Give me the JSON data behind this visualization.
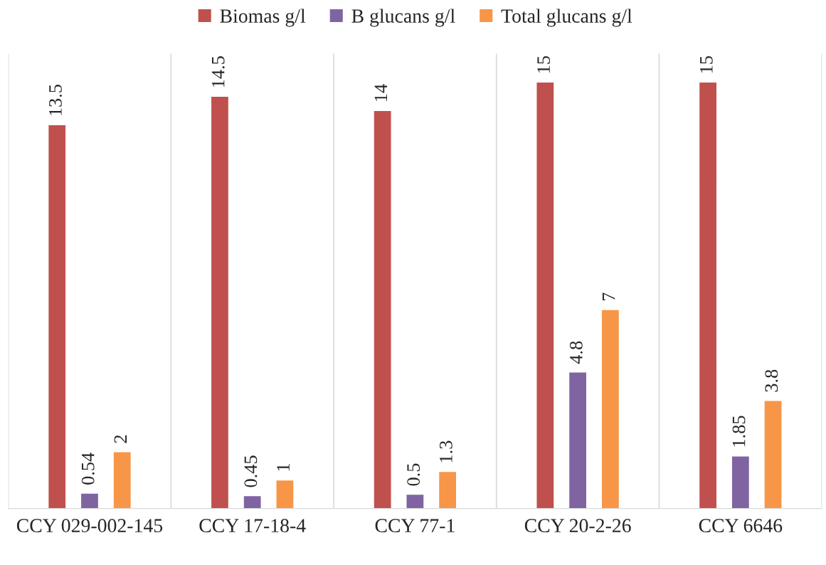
{
  "chart_data": {
    "type": "bar",
    "categories": [
      "CCY 029-002-145",
      "CCY 17-18-4",
      "CCY 77-1",
      "CCY 20-2-26",
      "CCY 6646"
    ],
    "series": [
      {
        "name": "Biomas g/l",
        "color": "#c0504d",
        "values": [
          13.5,
          14.5,
          14,
          15,
          15
        ]
      },
      {
        "name": "B glucans g/l",
        "color": "#8064a2",
        "values": [
          0.54,
          0.45,
          0.5,
          4.8,
          1.85
        ]
      },
      {
        "name": "Total glucans g/l",
        "color": "#f79646",
        "values": [
          2,
          1,
          1.3,
          7,
          3.8
        ]
      }
    ],
    "ylim": [
      0,
      16
    ],
    "data_labels": true,
    "grid": "x",
    "legend": "top",
    "tick_labels": "x"
  }
}
